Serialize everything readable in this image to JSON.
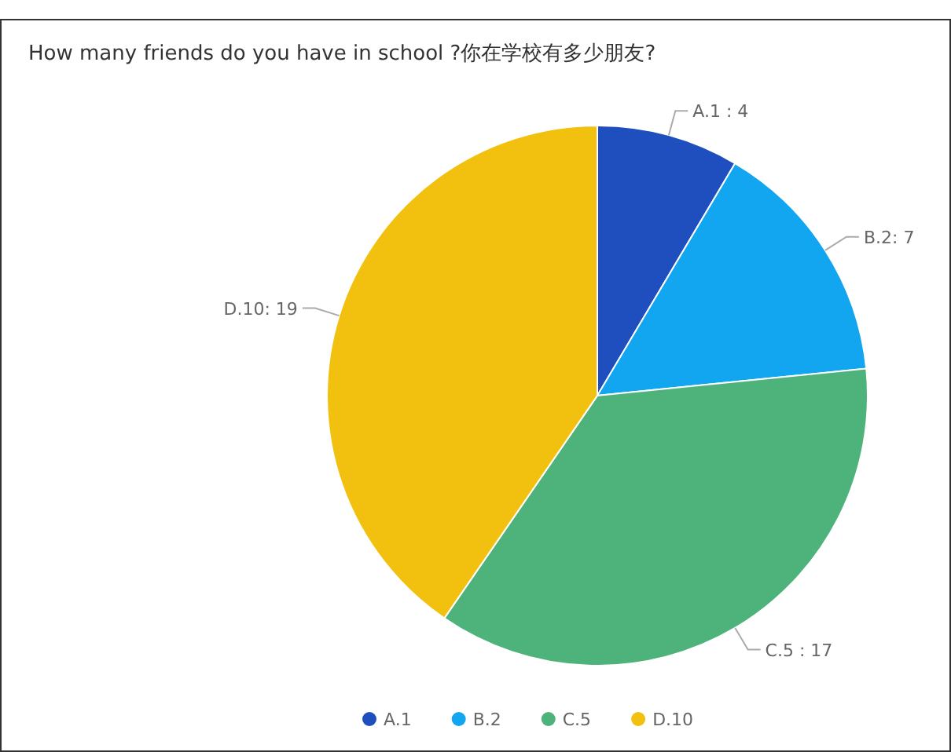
{
  "chart_data": {
    "type": "pie",
    "title": "How many friends do you have in school ?你在学校有多少朋友?",
    "categories": [
      "A.1",
      "B.2",
      "C.5",
      "D.10"
    ],
    "values": [
      4,
      7,
      17,
      19
    ],
    "value_labels": [
      "A.1 : 4",
      "B.2: 7",
      "C.5 : 17",
      "D.10: 19"
    ],
    "colors": [
      "#1f4fbf",
      "#12a5f0",
      "#4db37a",
      "#f2c10f"
    ],
    "legend": "bottom"
  }
}
